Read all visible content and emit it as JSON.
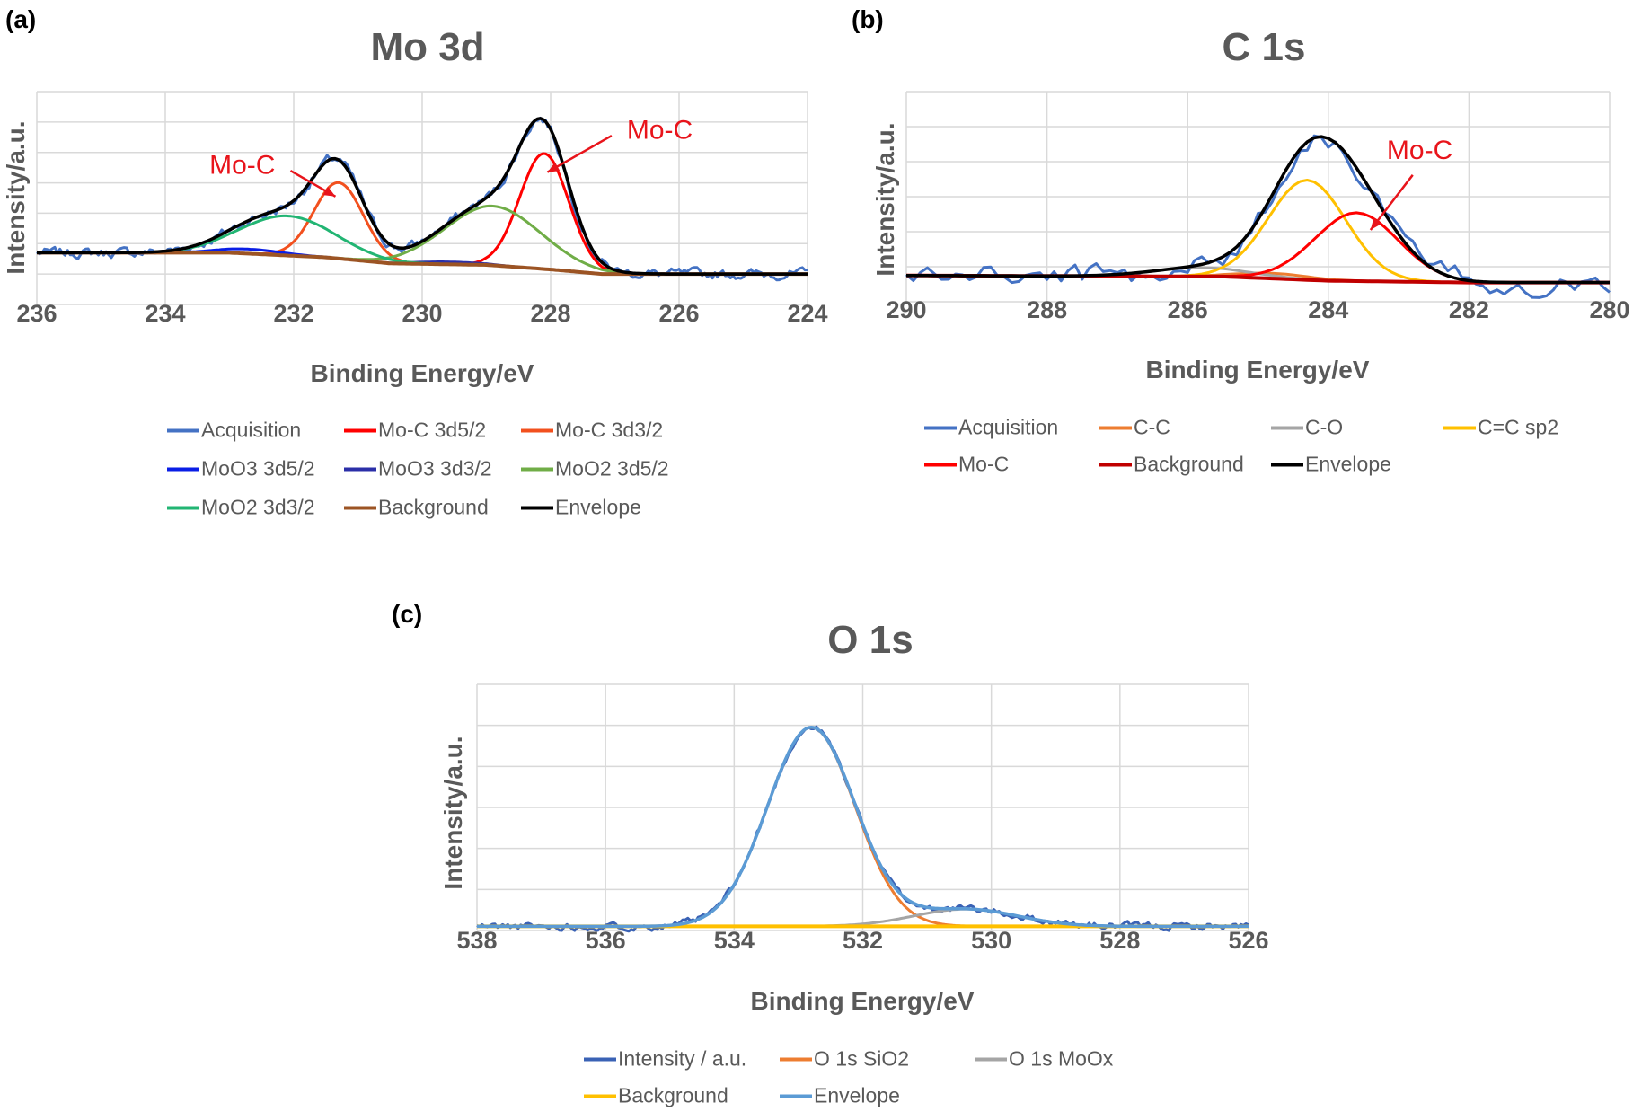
{
  "chart_data": [
    {
      "panel": "(a)",
      "type": "line",
      "title": "Mo 3d",
      "xlabel": "Binding Energy/eV",
      "ylabel": "Intensity/a.u.",
      "xlim": [
        236,
        224
      ],
      "x_ticks": [
        "236",
        "234",
        "232",
        "230",
        "228",
        "226",
        "224"
      ],
      "ylim": [
        0,
        7
      ],
      "grid": true,
      "legend_position": "bottom",
      "annotations": [
        "Mo-C",
        "Mo-C"
      ],
      "annotation_color": "#E8141B",
      "background": [
        [
          236,
          1.7
        ],
        [
          233,
          1.7
        ],
        [
          231.5,
          1.55
        ],
        [
          230.5,
          1.35
        ],
        [
          229,
          1.3
        ],
        [
          228,
          1.15
        ],
        [
          227.2,
          1.0
        ],
        [
          224,
          1.0
        ]
      ],
      "series": [
        {
          "name": "Acquisition",
          "color": "#4472C4",
          "kind": "acquisition"
        },
        {
          "name": "Mo-C 3d5/2",
          "color": "#FF0000",
          "kind": "peak",
          "center": 228.1,
          "height": 3.8,
          "fwhm": 0.9
        },
        {
          "name": "Mo-C 3d3/2",
          "color": "#F2501E",
          "kind": "peak",
          "center": 231.3,
          "height": 2.5,
          "fwhm": 0.9
        },
        {
          "name": "MoO3 3d5/2",
          "color": "#0A1EE6",
          "kind": "peak",
          "center": 232.7,
          "height": 0.15,
          "fwhm": 1.2
        },
        {
          "name": "MoO3 3d3/2",
          "color": "#2B2FA8",
          "kind": "peak",
          "center": 229.6,
          "height": 0.08,
          "fwhm": 1.2
        },
        {
          "name": "MoO2 3d5/2",
          "color": "#70AD47",
          "kind": "peak",
          "center": 228.9,
          "height": 1.95,
          "fwhm": 1.75
        },
        {
          "name": "MoO2 3d3/2",
          "color": "#22B573",
          "kind": "peak",
          "center": 232.1,
          "height": 1.3,
          "fwhm": 1.75
        },
        {
          "name": "Background",
          "color": "#9C5424",
          "kind": "background"
        },
        {
          "name": "Envelope",
          "color": "#000000",
          "kind": "envelope"
        }
      ]
    },
    {
      "panel": "(b)",
      "type": "line",
      "title": "C 1s",
      "xlabel": "Binding Energy/eV",
      "ylabel": "Intensity/a.u.",
      "xlim": [
        290,
        280
      ],
      "x_ticks": [
        "290",
        "288",
        "286",
        "284",
        "282",
        "280"
      ],
      "ylim": [
        0,
        6
      ],
      "grid": true,
      "legend_position": "bottom",
      "annotations": [
        "Mo-C"
      ],
      "annotation_color": "#E8141B",
      "background": [
        [
          290,
          0.75
        ],
        [
          285.5,
          0.72
        ],
        [
          284,
          0.6
        ],
        [
          282,
          0.55
        ],
        [
          280,
          0.55
        ]
      ],
      "series": [
        {
          "name": "Acquisition",
          "color": "#4472C4",
          "kind": "acquisition"
        },
        {
          "name": "C-C",
          "color": "#ED7D31",
          "kind": "peak",
          "center": 284.8,
          "height": 0.15,
          "fwhm": 1.2
        },
        {
          "name": "C-O",
          "color": "#A5A5A5",
          "kind": "peak",
          "center": 285.8,
          "height": 0.25,
          "fwhm": 1.6
        },
        {
          "name": "C=C sp2",
          "color": "#FFC000",
          "kind": "peak",
          "center": 284.3,
          "height": 2.85,
          "fwhm": 1.3
        },
        {
          "name": "Mo-C",
          "color": "#FF0000",
          "kind": "peak",
          "center": 283.6,
          "height": 1.95,
          "fwhm": 1.4
        },
        {
          "name": "Background",
          "color": "#C00000",
          "kind": "background"
        },
        {
          "name": "Envelope",
          "color": "#000000",
          "kind": "envelope"
        }
      ]
    },
    {
      "panel": "(c)",
      "type": "line",
      "title": "O 1s",
      "xlabel": "Binding Energy/eV",
      "ylabel": "Intensity/a.u.",
      "xlim": [
        538,
        526
      ],
      "x_ticks": [
        "538",
        "536",
        "534",
        "532",
        "530",
        "528",
        "526"
      ],
      "ylim": [
        0,
        6
      ],
      "grid": true,
      "legend_position": "bottom",
      "annotations": [],
      "background": [
        [
          538,
          0.1
        ],
        [
          526,
          0.1
        ]
      ],
      "series": [
        {
          "name": "Intensity / a.u.",
          "color": "#3A62B5",
          "kind": "acquisition"
        },
        {
          "name": "O 1s SiO2",
          "color": "#ED7D31",
          "kind": "peak",
          "center": 532.8,
          "height": 4.85,
          "fwhm": 1.6
        },
        {
          "name": "O 1s MoOx",
          "color": "#A5A5A5",
          "kind": "peak",
          "center": 530.4,
          "height": 0.42,
          "fwhm": 1.9
        },
        {
          "name": "Background",
          "color": "#FFC000",
          "kind": "background"
        },
        {
          "name": "Envelope",
          "color": "#5B9BD5",
          "kind": "envelope"
        }
      ]
    }
  ]
}
